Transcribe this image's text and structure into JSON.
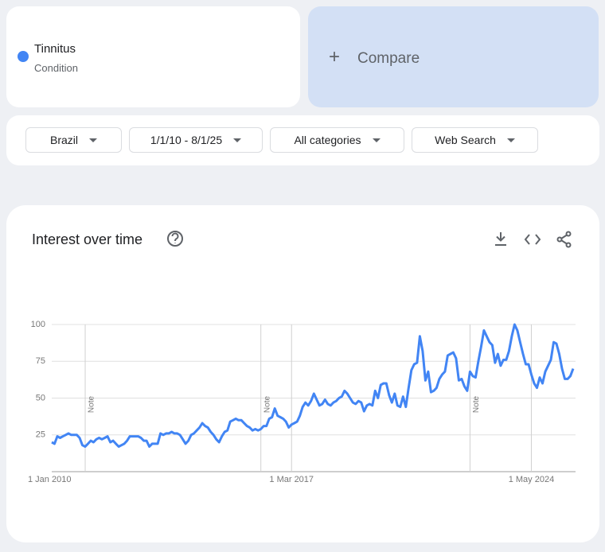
{
  "ui": {
    "term_type": "Condition",
    "compare": "Compare",
    "filters": [
      "Brazil",
      "1/1/10 - 8/1/25",
      "All categories",
      "Web Search"
    ]
  },
  "chart_data": {
    "type": "line",
    "title": "Interest over time",
    "categories": [
      "1 Jan 2010",
      null,
      null,
      null,
      null,
      null,
      null,
      null,
      null,
      null,
      null,
      null,
      null,
      null,
      null,
      null,
      null,
      null,
      null,
      null,
      null,
      null,
      null,
      null,
      null,
      null,
      null,
      null,
      null,
      null,
      null,
      null,
      null,
      null,
      null,
      null,
      null,
      null,
      null,
      null,
      null,
      null,
      null,
      null,
      null,
      null,
      null,
      null,
      null,
      null,
      null,
      null,
      null,
      null,
      null,
      null,
      null,
      null,
      null,
      null,
      null,
      null,
      null,
      null,
      null,
      null,
      null,
      null,
      null,
      null,
      null,
      null,
      null,
      null,
      null,
      null,
      null,
      null,
      null,
      null,
      null,
      null,
      null,
      null,
      null,
      null,
      "1 Mar 2017",
      null,
      null,
      null,
      null,
      null,
      null,
      null,
      null,
      null,
      null,
      null,
      null,
      null,
      null,
      null,
      null,
      null,
      null,
      null,
      null,
      null,
      null,
      null,
      null,
      null,
      null,
      null,
      null,
      null,
      null,
      null,
      null,
      null,
      null,
      null,
      null,
      null,
      null,
      null,
      null,
      null,
      null,
      null,
      null,
      null,
      null,
      null,
      null,
      null,
      null,
      null,
      null,
      null,
      null,
      null,
      null,
      null,
      null,
      null,
      null,
      null,
      null,
      null,
      null,
      null,
      null,
      null,
      null,
      null,
      null,
      null,
      null,
      null,
      null,
      null,
      null,
      null,
      null,
      null,
      null,
      null,
      null,
      null,
      null,
      null,
      "1 May 2024",
      null,
      null,
      null,
      null,
      null,
      null,
      null,
      null,
      null,
      null,
      null,
      null,
      null,
      null,
      null
    ],
    "series": [
      {
        "name": "Tinnitus",
        "color": "#4285f4",
        "values": [
          20,
          19,
          24,
          23,
          24,
          25,
          26,
          25,
          25,
          25,
          23,
          18,
          17,
          19,
          21,
          20,
          22,
          23,
          22,
          23,
          24,
          20,
          21,
          19,
          17,
          18,
          19,
          21,
          24,
          24,
          24,
          24,
          23,
          21,
          21,
          17,
          19,
          19,
          19,
          26,
          25,
          26,
          26,
          27,
          26,
          26,
          25,
          22,
          19,
          21,
          25,
          26,
          28,
          30,
          33,
          31,
          30,
          27,
          25,
          22,
          20,
          24,
          27,
          28,
          34,
          35,
          36,
          35,
          35,
          33,
          31,
          30,
          28,
          29,
          28,
          29,
          31,
          31,
          36,
          37,
          43,
          38,
          37,
          36,
          34,
          30,
          32,
          33,
          34,
          38,
          44,
          47,
          45,
          48,
          53,
          49,
          45,
          46,
          49,
          46,
          45,
          47,
          48,
          50,
          51,
          55,
          53,
          50,
          47,
          46,
          48,
          47,
          41,
          45,
          46,
          45,
          55,
          50,
          59,
          60,
          60,
          52,
          47,
          53,
          45,
          44,
          51,
          44,
          57,
          69,
          73,
          74,
          92,
          82,
          62,
          68,
          54,
          55,
          57,
          63,
          66,
          68,
          79,
          80,
          81,
          77,
          62,
          63,
          58,
          55,
          68,
          65,
          64,
          75,
          85,
          96,
          92,
          88,
          86,
          74,
          80,
          72,
          76,
          76,
          82,
          92,
          100,
          96,
          88,
          80,
          73,
          73,
          66,
          60,
          57,
          64,
          60,
          68,
          72,
          76,
          88,
          87,
          80,
          70,
          63,
          63,
          65,
          70
        ]
      }
    ],
    "annotations": [
      {
        "at": 12,
        "text": "Note"
      },
      {
        "at": 75,
        "text": "Note"
      },
      {
        "at": 150,
        "text": "Note"
      }
    ],
    "ylim": [
      0,
      100
    ],
    "yticks": [
      25,
      50,
      75,
      100
    ],
    "grid": true
  }
}
